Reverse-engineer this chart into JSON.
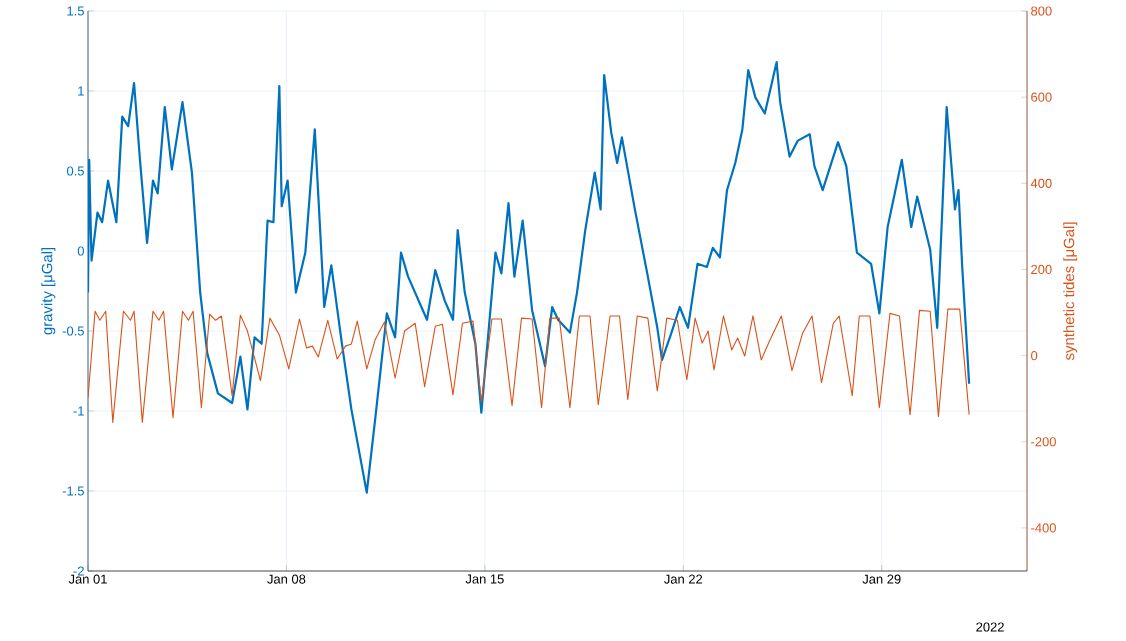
{
  "chart_data": {
    "type": "line",
    "ylabel": "gravity [μGal]",
    "y2label": "synthetic tides [μGal]",
    "xlim": [
      "2022-01-01",
      "2022-02-03T03:00"
    ],
    "xticks": [
      {
        "value": "2022-01-01",
        "label": "Jan 01"
      },
      {
        "value": "2022-01-08",
        "label": "Jan 08"
      },
      {
        "value": "2022-01-15",
        "label": "Jan 15"
      },
      {
        "value": "2022-01-22",
        "label": "Jan 22"
      },
      {
        "value": "2022-01-29",
        "label": "Jan 29"
      }
    ],
    "ylim": [
      -2,
      1.5
    ],
    "yticks": [
      -2,
      -1.5,
      -1,
      -0.5,
      0,
      0.5,
      1,
      1.5
    ],
    "y2lim": [
      -500,
      800
    ],
    "y2ticks": [
      -400,
      -200,
      0,
      200,
      400,
      600,
      800
    ],
    "grid": true,
    "annotations": [
      "2022"
    ],
    "series": [
      {
        "color": "#0072bd",
        "x": [
          "2022-01-01T00:00",
          "2022-01-01T01:00",
          "2022-01-01T03:00",
          "2022-01-01T08:00",
          "2022-01-01T12:00",
          "2022-01-01T17:00",
          "2022-01-02T00:00",
          "2022-01-02T05:00",
          "2022-01-02T10:00",
          "2022-01-02T15:00",
          "2022-01-02T20:00",
          "2022-01-03T02:00",
          "2022-01-03T07:00",
          "2022-01-03T11:00",
          "2022-01-03T17:00",
          "2022-01-03T23:00",
          "2022-01-04T08:00",
          "2022-01-04T16:00",
          "2022-01-04T23:00",
          "2022-01-05T05:00",
          "2022-01-05T14:00",
          "2022-01-06T02:00",
          "2022-01-06T09:00",
          "2022-01-06T15:00",
          "2022-01-06T21:00",
          "2022-01-07T03:00",
          "2022-01-07T08:00",
          "2022-01-07T13:00",
          "2022-01-07T18:00",
          "2022-01-07T20:00",
          "2022-01-08T01:00",
          "2022-01-08T08:00",
          "2022-01-08T16:00",
          "2022-01-09T00:00",
          "2022-01-09T08:00",
          "2022-01-09T14:00",
          "2022-01-09T23:00",
          "2022-01-10T07:00",
          "2022-01-10T20:00",
          "2022-01-11T03:00",
          "2022-01-11T13:00",
          "2022-01-11T20:00",
          "2022-01-12T01:00",
          "2022-01-12T07:00",
          "2022-01-12T23:00",
          "2022-01-13T06:00",
          "2022-01-13T14:00",
          "2022-01-13T21:00",
          "2022-01-14T01:00",
          "2022-01-14T07:00",
          "2022-01-14T16:00",
          "2022-01-14T21:00",
          "2022-01-15T09:00",
          "2022-01-15T14:00",
          "2022-01-15T20:00",
          "2022-01-16T01:00",
          "2022-01-16T08:00",
          "2022-01-16T16:00",
          "2022-01-17T03:00",
          "2022-01-17T09:00",
          "2022-01-17T14:00",
          "2022-01-18T00:00",
          "2022-01-18T06:00",
          "2022-01-18T13:00",
          "2022-01-18T21:00",
          "2022-01-19T02:00",
          "2022-01-19T05:00",
          "2022-01-19T11:00",
          "2022-01-19T16:00",
          "2022-01-19T20:00",
          "2022-01-20T07:00",
          "2022-01-20T18:00",
          "2022-01-21T02:00",
          "2022-01-21T06:00",
          "2022-01-21T14:00",
          "2022-01-21T21:00",
          "2022-01-22T04:00",
          "2022-01-22T12:00",
          "2022-01-22T20:00",
          "2022-01-23T01:00",
          "2022-01-23T07:00",
          "2022-01-23T13:00",
          "2022-01-23T20:00",
          "2022-01-24T02:00",
          "2022-01-24T07:00",
          "2022-01-24T13:00",
          "2022-01-24T21:00",
          "2022-01-25T07:00",
          "2022-01-25T10:00",
          "2022-01-25T18:00",
          "2022-01-26T01:00",
          "2022-01-26T11:00",
          "2022-01-26T15:00",
          "2022-01-26T22:00",
          "2022-01-27T11:00",
          "2022-01-27T18:00",
          "2022-01-28T03:00",
          "2022-01-28T15:00",
          "2022-01-28T22:00",
          "2022-01-29T05:00",
          "2022-01-29T11:00",
          "2022-01-29T17:00",
          "2022-01-30T01:00",
          "2022-01-30T06:00",
          "2022-01-30T17:00",
          "2022-01-30T23:00",
          "2022-01-31T07:00",
          "2022-01-31T14:00",
          "2022-01-31T17:00",
          "2022-01-31T20:00",
          "2022-02-01T02:00"
        ],
        "values": [
          -0.26,
          0.57,
          -0.06,
          0.24,
          0.18,
          0.44,
          0.18,
          0.84,
          0.78,
          1.05,
          0.57,
          0.05,
          0.44,
          0.36,
          0.9,
          0.51,
          0.93,
          0.49,
          -0.26,
          -0.64,
          -0.89,
          -0.95,
          -0.66,
          -0.99,
          -0.54,
          -0.58,
          0.19,
          0.18,
          1.03,
          0.28,
          0.44,
          -0.26,
          -0.01,
          0.76,
          -0.35,
          -0.09,
          -0.58,
          -0.99,
          -1.51,
          -1.06,
          -0.39,
          -0.54,
          -0.01,
          -0.16,
          -0.43,
          -0.12,
          -0.31,
          -0.43,
          0.13,
          -0.26,
          -0.58,
          -1.01,
          -0.01,
          -0.14,
          0.3,
          -0.16,
          0.19,
          -0.37,
          -0.72,
          -0.35,
          -0.43,
          -0.51,
          -0.26,
          0.13,
          0.49,
          0.26,
          1.1,
          0.74,
          0.55,
          0.71,
          0.26,
          -0.16,
          -0.48,
          -0.68,
          -0.51,
          -0.35,
          -0.48,
          -0.08,
          -0.1,
          0.02,
          -0.04,
          0.38,
          0.55,
          0.76,
          1.13,
          0.96,
          0.86,
          1.18,
          0.93,
          0.59,
          0.69,
          0.73,
          0.53,
          0.38,
          0.68,
          0.53,
          -0.01,
          -0.08,
          -0.39,
          0.15,
          0.36,
          0.57,
          0.15,
          0.34,
          0.01,
          -0.48,
          0.9,
          0.26,
          0.38,
          -0.08,
          -0.83
        ]
      },
      {
        "color": "#d95319",
        "axis": "y2",
        "x": [
          "2022-01-01T00:00",
          "2022-01-01T06:00",
          "2022-01-01T10:00",
          "2022-01-01T15:00",
          "2022-01-01T21:00",
          "2022-01-02T06:00",
          "2022-01-02T12:00",
          "2022-01-02T15:00",
          "2022-01-02T22:00",
          "2022-01-03T07:00",
          "2022-01-03T12:00",
          "2022-01-03T16:00",
          "2022-01-04T00:00",
          "2022-01-04T08:00",
          "2022-01-04T13:00",
          "2022-01-04T17:00",
          "2022-01-05T00:00",
          "2022-01-05T07:00",
          "2022-01-05T12:00",
          "2022-01-05T17:00",
          "2022-01-06T02:00",
          "2022-01-06T09:00",
          "2022-01-06T15:00",
          "2022-01-07T02:00",
          "2022-01-07T10:00",
          "2022-01-07T18:00",
          "2022-01-08T02:00",
          "2022-01-08T11:00",
          "2022-01-08T17:00",
          "2022-01-08T22:00",
          "2022-01-09T03:00",
          "2022-01-09T11:00",
          "2022-01-09T19:00",
          "2022-01-10T02:00",
          "2022-01-10T07:00",
          "2022-01-10T12:00",
          "2022-01-10T20:00",
          "2022-01-11T03:00",
          "2022-01-11T11:00",
          "2022-01-11T20:00",
          "2022-01-12T04:00",
          "2022-01-12T13:00",
          "2022-01-12T21:00",
          "2022-01-13T06:00",
          "2022-01-13T12:00",
          "2022-01-13T21:00",
          "2022-01-14T05:00",
          "2022-01-14T14:00",
          "2022-01-14T21:00",
          "2022-01-15T06:00",
          "2022-01-15T14:00",
          "2022-01-15T23:00",
          "2022-01-16T07:00",
          "2022-01-16T16:00",
          "2022-01-17T00:00",
          "2022-01-17T07:00",
          "2022-01-17T15:00",
          "2022-01-18T00:00",
          "2022-01-18T08:00",
          "2022-01-18T17:00",
          "2022-01-19T00:00",
          "2022-01-19T10:00",
          "2022-01-19T18:00",
          "2022-01-20T01:00",
          "2022-01-20T09:00",
          "2022-01-20T18:00",
          "2022-01-21T02:00",
          "2022-01-21T10:00",
          "2022-01-21T19:00",
          "2022-01-22T03:00",
          "2022-01-22T10:00",
          "2022-01-22T16:00",
          "2022-01-22T21:00",
          "2022-01-23T02:00",
          "2022-01-23T10:00",
          "2022-01-23T17:00",
          "2022-01-23T22:00",
          "2022-01-24T04:00",
          "2022-01-24T11:00",
          "2022-01-24T18:00",
          "2022-01-25T01:00",
          "2022-01-25T11:00",
          "2022-01-25T20:00",
          "2022-01-26T05:00",
          "2022-01-26T13:00",
          "2022-01-26T21:00",
          "2022-01-27T07:00",
          "2022-01-27T12:00",
          "2022-01-27T23:00",
          "2022-01-28T05:00",
          "2022-01-28T14:00",
          "2022-01-28T22:00",
          "2022-01-29T07:00",
          "2022-01-29T15:00",
          "2022-01-30T00:00",
          "2022-01-30T08:00",
          "2022-01-30T17:00",
          "2022-01-31T00:00",
          "2022-01-31T08:00",
          "2022-01-31T18:00",
          "2022-02-01T02:00"
        ],
        "values": [
          -98,
          103,
          82,
          103,
          -155,
          103,
          82,
          103,
          -155,
          103,
          82,
          103,
          -144,
          103,
          82,
          103,
          -121,
          96,
          82,
          92,
          -93,
          94,
          57,
          -58,
          87,
          48,
          -31,
          85,
          18,
          22,
          -3,
          82,
          -8,
          22,
          27,
          80,
          -31,
          36,
          78,
          -52,
          57,
          75,
          -72,
          68,
          73,
          -91,
          75,
          80,
          -107,
          85,
          85,
          -116,
          87,
          85,
          -121,
          87,
          87,
          -121,
          92,
          92,
          -114,
          92,
          92,
          -102,
          92,
          87,
          -82,
          87,
          82,
          -56,
          87,
          29,
          57,
          -33,
          92,
          13,
          41,
          -1,
          92,
          -10,
          34,
          92,
          -35,
          52,
          92,
          -63,
          75,
          92,
          -93,
          92,
          92,
          -121,
          98,
          92,
          -137,
          105,
          103,
          -141,
          108,
          108,
          -137
        ]
      }
    ]
  }
}
